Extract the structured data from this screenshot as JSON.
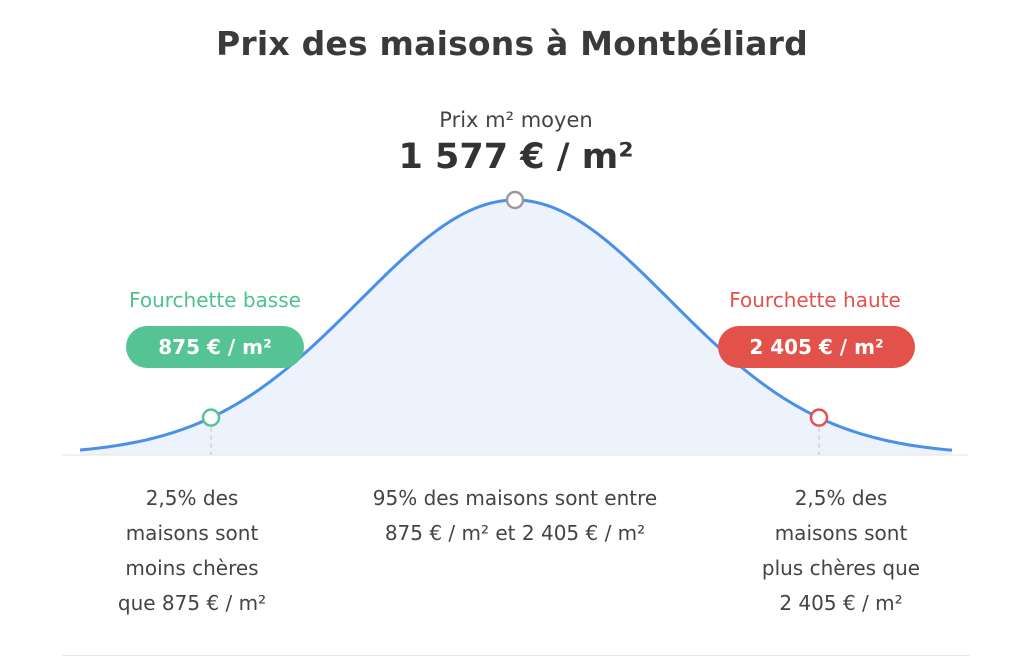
{
  "title": "Prix des maisons à Montbéliard",
  "mean": {
    "label": "Prix m² moyen",
    "value_text": "1 577 € / m²"
  },
  "low": {
    "label": "Fourchette basse",
    "value_text": "875 € / m²"
  },
  "high": {
    "label": "Fourchette haute",
    "value_text": "2 405 € / m²"
  },
  "notes": {
    "left": [
      "2,5% des",
      "maisons sont",
      "moins chères",
      "que 875 € / m²"
    ],
    "center": [
      "95% des maisons sont entre",
      "875 € / m² et 2 405 € / m²"
    ],
    "right": [
      "2,5% des",
      "maisons sont",
      "plus chères que",
      "2 405 € / m²"
    ]
  },
  "colors": {
    "curve": "#4a90e8",
    "fill": "#edf3fd",
    "low": "#56c394",
    "high": "#e2524a",
    "mean_marker": "#9a9a9a"
  },
  "chart_data": {
    "type": "area",
    "distribution": "normal",
    "mean": 1577,
    "low": 875,
    "high": 2405,
    "unit": "€ / m²",
    "markers": [
      {
        "name": "Fourchette basse",
        "value": 875
      },
      {
        "name": "Prix m² moyen",
        "value": 1577
      },
      {
        "name": "Fourchette haute",
        "value": 2405
      }
    ]
  }
}
